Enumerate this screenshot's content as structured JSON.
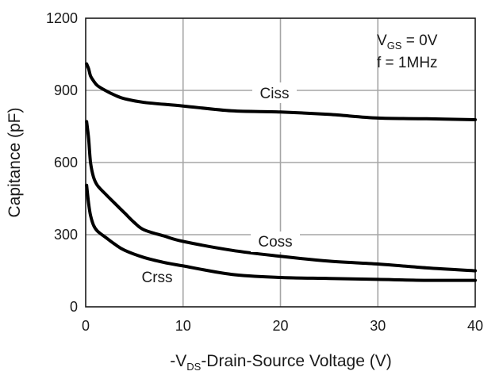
{
  "chart_data": {
    "type": "line",
    "title": "",
    "xlabel": {
      "prefix": "-V",
      "subscript": "DS",
      "suffix": "-Drain-Source Voltage (V)"
    },
    "ylabel": "Capitance (pF)",
    "xlim": [
      0,
      40
    ],
    "ylim": [
      0,
      1200
    ],
    "xticks": [
      0,
      10,
      20,
      30,
      40
    ],
    "yticks": [
      0,
      300,
      600,
      900,
      1200
    ],
    "grid": true,
    "conditions": {
      "line1": {
        "prefix": "V",
        "subscript": "GS",
        "suffix": " = 0V"
      },
      "line2": "f = 1MHz"
    },
    "series": [
      {
        "name": "Ciss",
        "x": [
          0.1,
          0.3,
          0.5,
          0.8,
          1.2,
          2,
          3,
          4,
          6,
          10,
          15,
          20,
          25,
          30,
          35,
          40
        ],
        "y": [
          1010,
          990,
          960,
          940,
          920,
          900,
          880,
          865,
          850,
          835,
          815,
          810,
          800,
          785,
          782,
          778
        ]
      },
      {
        "name": "Coss",
        "x": [
          0.1,
          0.3,
          0.5,
          0.8,
          1.2,
          2,
          3,
          4,
          5,
          6,
          8,
          10,
          15,
          20,
          25,
          30,
          35,
          40
        ],
        "y": [
          770,
          700,
          600,
          540,
          505,
          470,
          430,
          390,
          350,
          320,
          295,
          272,
          235,
          210,
          190,
          178,
          162,
          150
        ]
      },
      {
        "name": "Crss",
        "x": [
          0.1,
          0.3,
          0.5,
          0.8,
          1.2,
          2,
          3,
          4,
          6,
          8,
          10,
          15,
          20,
          25,
          30,
          35,
          40
        ],
        "y": [
          505,
          430,
          380,
          340,
          315,
          290,
          260,
          235,
          205,
          185,
          170,
          135,
          122,
          118,
          114,
          110,
          110
        ]
      }
    ]
  }
}
